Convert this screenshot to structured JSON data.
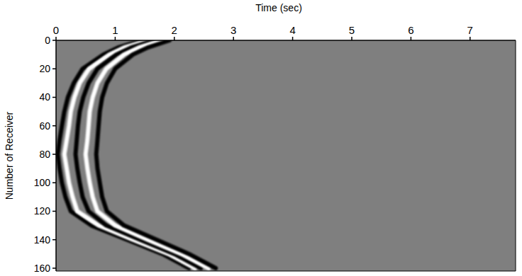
{
  "chart_data": {
    "type": "line",
    "x_label": "Time (sec)",
    "y_label": "Number of Receiver",
    "xlim": [
      0,
      7.77
    ],
    "xticks": [
      0,
      1,
      2,
      3,
      4,
      5,
      6,
      7
    ],
    "ylim": [
      0,
      162
    ],
    "yticks": [
      0,
      20,
      40,
      60,
      80,
      100,
      120,
      140,
      160
    ],
    "orientation": "horizontal",
    "grid": false,
    "receivers": [
      0,
      5,
      10,
      20,
      30,
      40,
      50,
      60,
      70,
      80,
      90,
      100,
      110,
      120,
      130,
      140,
      150,
      160
    ],
    "series": [
      {
        "color": "#000000",
        "values": [
          1.45,
          1.05,
          0.8,
          0.45,
          0.3,
          0.2,
          0.14,
          0.1,
          0.06,
          0.03,
          0.06,
          0.1,
          0.16,
          0.25,
          0.6,
          1.2,
          1.8,
          2.25
        ]
      },
      {
        "color": "#ffffff",
        "values": [
          1.55,
          1.15,
          0.9,
          0.56,
          0.4,
          0.31,
          0.25,
          0.22,
          0.18,
          0.14,
          0.18,
          0.22,
          0.28,
          0.36,
          0.72,
          1.3,
          1.9,
          2.35
        ]
      },
      {
        "color": "#000000",
        "values": [
          1.65,
          1.27,
          1.02,
          0.7,
          0.55,
          0.46,
          0.4,
          0.37,
          0.35,
          0.33,
          0.36,
          0.4,
          0.45,
          0.55,
          0.85,
          1.42,
          2.0,
          2.45
        ]
      },
      {
        "color": "#ffffff",
        "values": [
          1.78,
          1.4,
          1.15,
          0.85,
          0.7,
          0.62,
          0.57,
          0.55,
          0.53,
          0.5,
          0.53,
          0.57,
          0.62,
          0.7,
          1.0,
          1.55,
          2.12,
          2.58
        ]
      },
      {
        "color": "#000000",
        "values": [
          1.92,
          1.55,
          1.3,
          1.0,
          0.86,
          0.78,
          0.74,
          0.72,
          0.7,
          0.68,
          0.7,
          0.74,
          0.78,
          0.86,
          1.15,
          1.7,
          2.25,
          2.7
        ]
      }
    ]
  }
}
